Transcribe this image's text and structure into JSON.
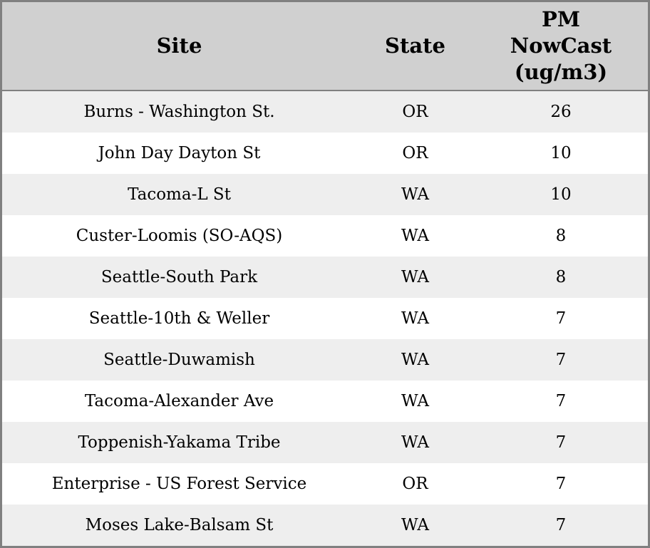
{
  "table": {
    "header": {
      "site": "Site",
      "state": "State",
      "pm_line1": "PM",
      "pm_line2": "NowCast",
      "pm_line3": "(ug/m3)"
    },
    "rows": [
      {
        "site": "Burns - Washington St.",
        "state": "OR",
        "pm": "26"
      },
      {
        "site": "John Day Dayton St",
        "state": "OR",
        "pm": "10"
      },
      {
        "site": "Tacoma-L St",
        "state": "WA",
        "pm": "10"
      },
      {
        "site": "Custer-Loomis (SO-AQS)",
        "state": "WA",
        "pm": "8"
      },
      {
        "site": "Seattle-South Park",
        "state": "WA",
        "pm": "8"
      },
      {
        "site": "Seattle-10th & Weller",
        "state": "WA",
        "pm": "7"
      },
      {
        "site": "Seattle-Duwamish",
        "state": "WA",
        "pm": "7"
      },
      {
        "site": "Tacoma-Alexander Ave",
        "state": "WA",
        "pm": "7"
      },
      {
        "site": "Toppenish-Yakama Tribe",
        "state": "WA",
        "pm": "7"
      },
      {
        "site": "Enterprise - US Forest Service",
        "state": "OR",
        "pm": "7"
      },
      {
        "site": "Moses Lake-Balsam St",
        "state": "WA",
        "pm": "7"
      }
    ],
    "colors": {
      "header_bg": "#d0d0d0",
      "row_odd_bg": "#eeeeee",
      "row_even_bg": "#ffffff",
      "border": "#808080",
      "text": "#000000"
    }
  }
}
